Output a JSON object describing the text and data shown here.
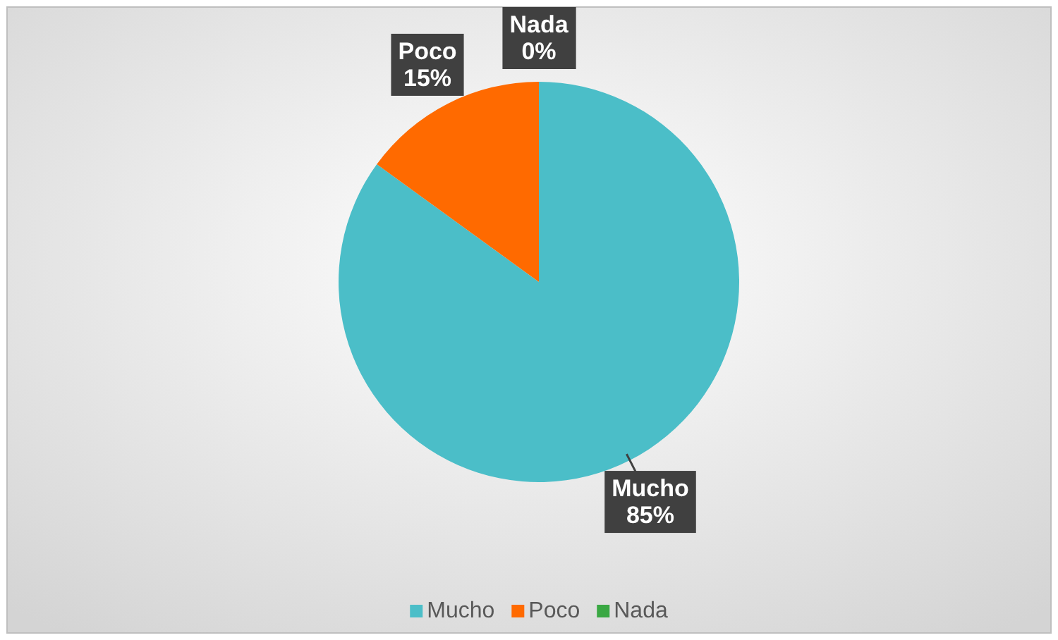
{
  "chart_data": {
    "type": "pie",
    "categories": [
      "Mucho",
      "Poco",
      "Nada"
    ],
    "values": [
      85,
      15,
      0
    ],
    "value_labels": [
      "85%",
      "15%",
      "0%"
    ],
    "colors": [
      "#4bbec8",
      "#ff6a00",
      "#3aa843"
    ],
    "legend": "bottom"
  }
}
